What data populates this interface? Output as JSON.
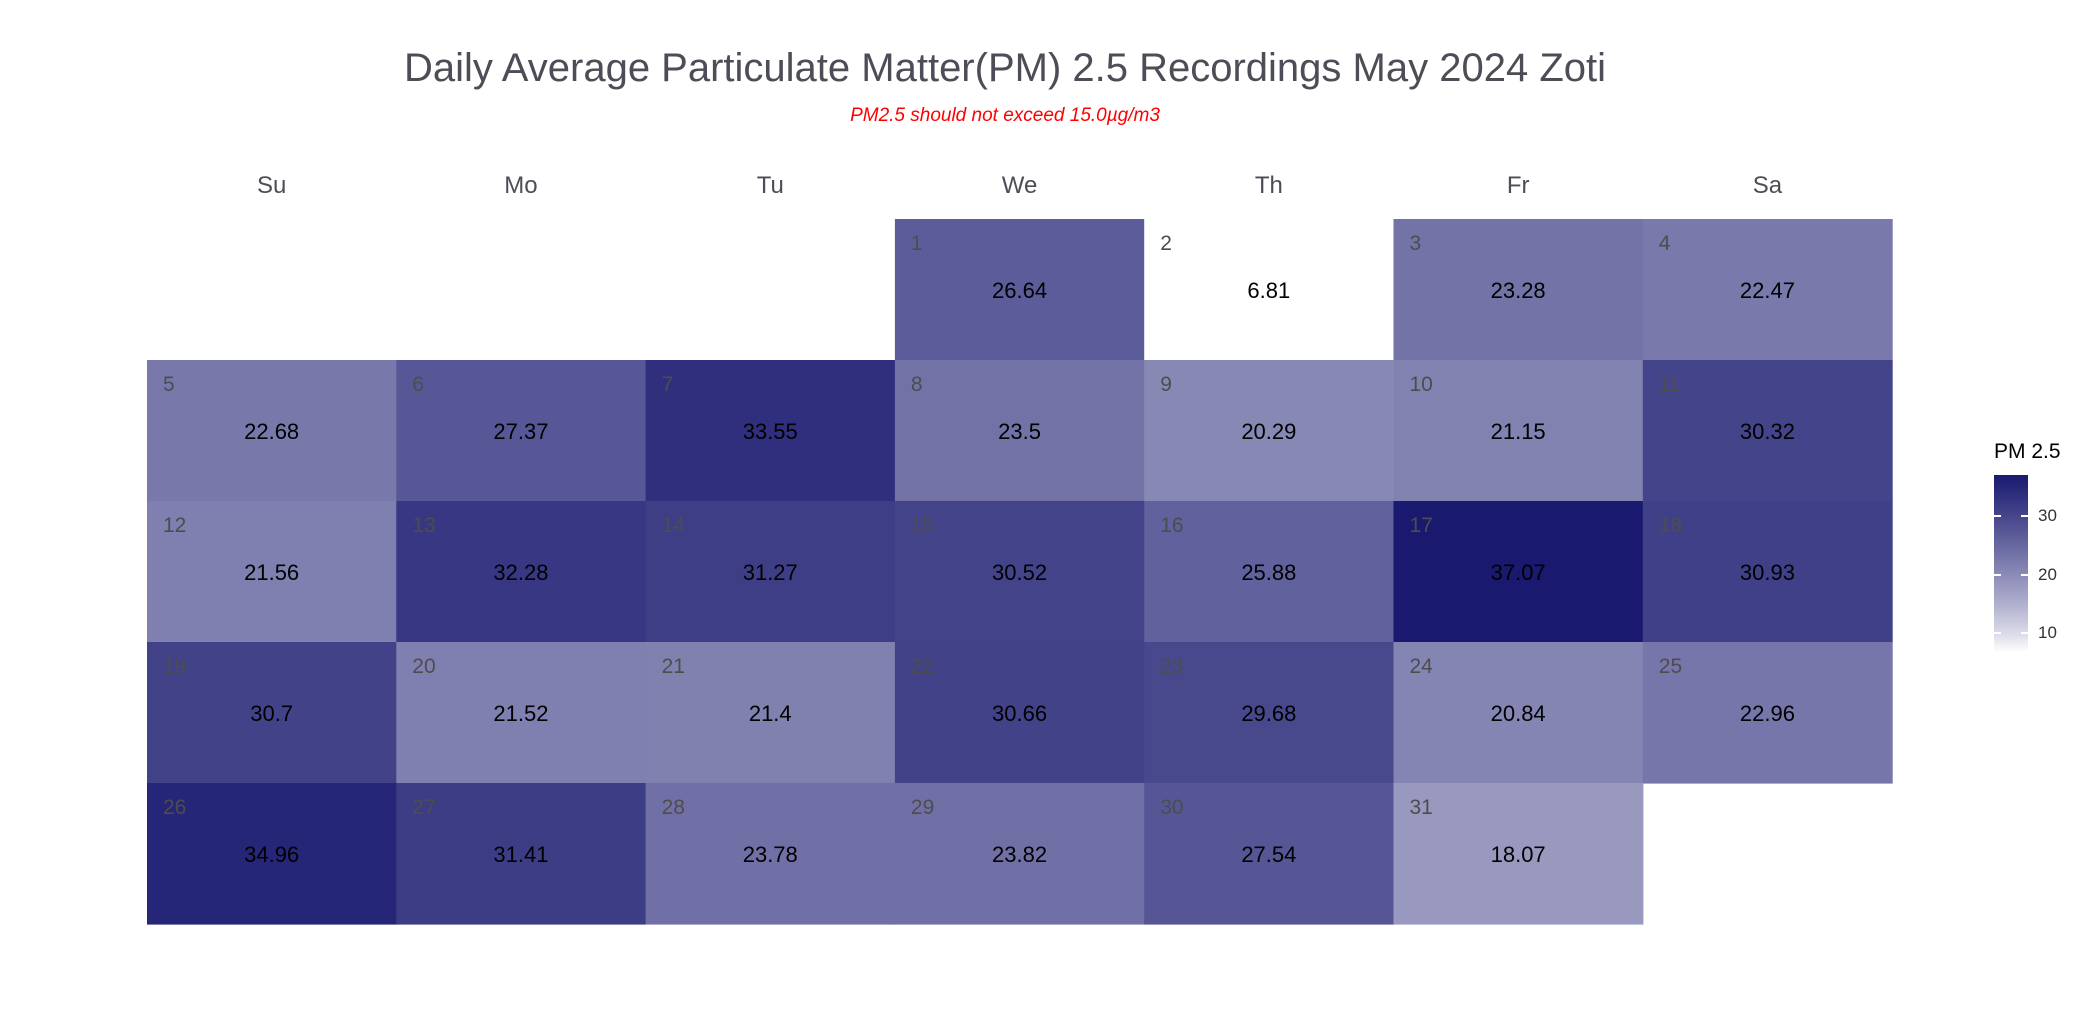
{
  "chart_data": {
    "type": "heatmap",
    "title": "Daily Average Particulate Matter(PM) 2.5 Recordings May 2024 Zoti",
    "subtitle": "PM2.5 should not exceed 15.0µg/m3",
    "weekdays": [
      "Su",
      "Mo",
      "Tu",
      "We",
      "Th",
      "Fr",
      "Sa"
    ],
    "month": "May 2024",
    "first_weekday_index": 3,
    "days": [
      {
        "day": 1,
        "value": 26.64
      },
      {
        "day": 2,
        "value": 6.81
      },
      {
        "day": 3,
        "value": 23.28
      },
      {
        "day": 4,
        "value": 22.47
      },
      {
        "day": 5,
        "value": 22.68
      },
      {
        "day": 6,
        "value": 27.37
      },
      {
        "day": 7,
        "value": 33.55
      },
      {
        "day": 8,
        "value": 23.5
      },
      {
        "day": 9,
        "value": 20.29
      },
      {
        "day": 10,
        "value": 21.15
      },
      {
        "day": 11,
        "value": 30.32
      },
      {
        "day": 12,
        "value": 21.56
      },
      {
        "day": 13,
        "value": 32.28
      },
      {
        "day": 14,
        "value": 31.27
      },
      {
        "day": 15,
        "value": 30.52
      },
      {
        "day": 16,
        "value": 25.88
      },
      {
        "day": 17,
        "value": 37.07
      },
      {
        "day": 18,
        "value": 30.93
      },
      {
        "day": 19,
        "value": 30.7
      },
      {
        "day": 20,
        "value": 21.52
      },
      {
        "day": 21,
        "value": 21.4
      },
      {
        "day": 22,
        "value": 30.66
      },
      {
        "day": 23,
        "value": 29.68
      },
      {
        "day": 24,
        "value": 20.84
      },
      {
        "day": 25,
        "value": 22.96
      },
      {
        "day": 26,
        "value": 34.96
      },
      {
        "day": 27,
        "value": 31.41
      },
      {
        "day": 28,
        "value": 23.78
      },
      {
        "day": 29,
        "value": 23.82
      },
      {
        "day": 30,
        "value": 27.54
      },
      {
        "day": 31,
        "value": 18.07
      }
    ],
    "legend": {
      "title": "PM 2.5",
      "ticks": [
        10,
        20,
        30
      ],
      "range": [
        6.81,
        37.07
      ],
      "color_low": "#ffffff",
      "color_high": "#191970"
    }
  }
}
